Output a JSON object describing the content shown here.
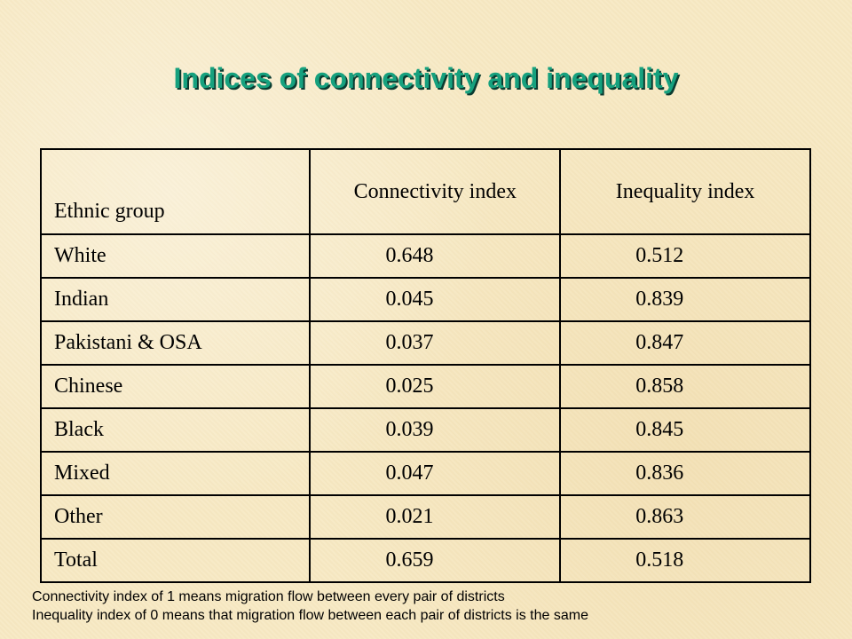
{
  "slide": {
    "title": "Indices of connectivity and inequality"
  },
  "table": {
    "headers": [
      "Ethnic group",
      "Connectivity index",
      "Inequality index"
    ],
    "rows": [
      {
        "group": "White",
        "connectivity": "0.648",
        "inequality": "0.512"
      },
      {
        "group": "Indian",
        "connectivity": "0.045",
        "inequality": "0.839"
      },
      {
        "group": "Pakistani & OSA",
        "connectivity": "0.037",
        "inequality": "0.847"
      },
      {
        "group": "Chinese",
        "connectivity": "0.025",
        "inequality": "0.858"
      },
      {
        "group": "Black",
        "connectivity": "0.039",
        "inequality": "0.845"
      },
      {
        "group": "Mixed",
        "connectivity": "0.047",
        "inequality": "0.836"
      },
      {
        "group": "Other",
        "connectivity": "0.021",
        "inequality": "0.863"
      },
      {
        "group": "Total",
        "connectivity": "0.659",
        "inequality": "0.518"
      }
    ]
  },
  "footnotes": [
    "Connectivity index of 1 means migration flow between every pair of districts",
    "Inequality index of 0 means that migration flow between each pair of districts is the same"
  ],
  "colors": {
    "background": "#f7e9c4",
    "title": "#16a17e",
    "title_shadow": "#0b3b30"
  }
}
